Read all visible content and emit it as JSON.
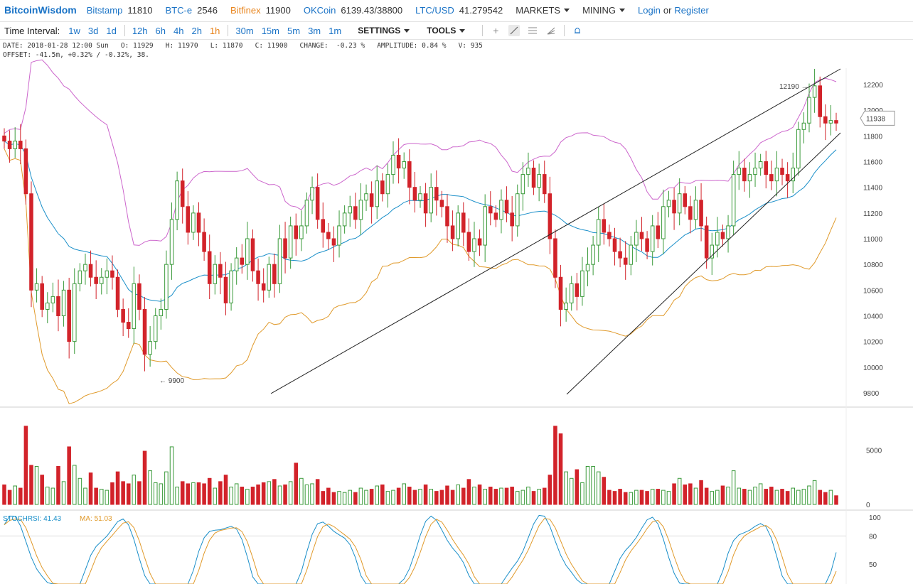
{
  "header": {
    "brand": "BitcoinWisdom",
    "markets": [
      {
        "name": "Bitstamp",
        "price": "11810",
        "color": "#1a73c6"
      },
      {
        "name": "BTC-e",
        "price": "2546",
        "color": "#1a73c6"
      },
      {
        "name": "Bitfinex",
        "price": "11900",
        "color": "#e8841c"
      },
      {
        "name": "OKCoin",
        "price": "6139.43/38800",
        "color": "#1a73c6"
      },
      {
        "name": "LTC/USD",
        "price": "41.279542",
        "color": "#1a73c6"
      }
    ],
    "menus": [
      "MARKETS",
      "MINING"
    ],
    "login": "Login",
    "or": "or",
    "register": "Register"
  },
  "toolbar": {
    "label": "Time Interval:",
    "intervals": [
      "1w",
      "3d",
      "1d",
      "12h",
      "6h",
      "4h",
      "2h",
      "1h",
      "30m",
      "15m",
      "5m",
      "3m",
      "1m"
    ],
    "active_interval": "1h",
    "settings": "SETTINGS",
    "tools": "TOOLS",
    "icons": [
      "crosshair-icon",
      "trendline-icon",
      "fibonacci-icon",
      "fan-icon",
      "bell-icon"
    ]
  },
  "info": {
    "line1": "DATE: 2018-01-28 12:00 Sun   O: 11929   H: 11970   L: 11870   C: 11900   CHANGE:  -0.23 %   AMPLITUDE: 0.84 %   V: 935",
    "line2": "OFFSET: -41.5m, +0.32% / -0.32%, 38."
  },
  "chart_data": {
    "type": "candlestick",
    "y_ticks": [
      9800,
      10000,
      10200,
      10400,
      10600,
      10800,
      11000,
      11200,
      11400,
      11600,
      11800,
      12000,
      12200
    ],
    "ylim": [
      9700,
      12300
    ],
    "current_price": "11938",
    "annotations": [
      {
        "text": "12190 →",
        "value": 12190
      },
      {
        "text": "← 9900",
        "value": 9900
      }
    ],
    "colors": {
      "up": "#3a9a3a",
      "down": "#d2232a",
      "upper_band": "#cc66cc",
      "middle_band": "#1a8fc9",
      "lower_band": "#e09a2b",
      "trendline": "#222222"
    },
    "closes": [
      11760,
      11700,
      11760,
      11700,
      11350,
      10600,
      10650,
      10450,
      10500,
      10550,
      10400,
      10600,
      10200,
      10650,
      10750,
      10800,
      10700,
      10650,
      10700,
      10750,
      10700,
      10450,
      10350,
      10300,
      10650,
      10450,
      10100,
      10200,
      10400,
      10450,
      10800,
      11150,
      11450,
      11250,
      11050,
      11200,
      11050,
      10900,
      10650,
      10800,
      10700,
      10500,
      10750,
      10850,
      10800,
      11000,
      10750,
      10650,
      10600,
      10800,
      10650,
      11000,
      10850,
      11100,
      11000,
      11100,
      11300,
      11400,
      11150,
      11050,
      11000,
      10950,
      11100,
      11200,
      11250,
      11150,
      11300,
      11350,
      11250,
      11450,
      11350,
      11500,
      11650,
      11550,
      11600,
      11400,
      11300,
      11350,
      11200,
      11400,
      11300,
      11250,
      11100,
      11000,
      11200,
      11050,
      10900,
      11000,
      10950,
      11250,
      11200,
      11150,
      11300,
      11200,
      11100,
      11350,
      11500,
      11550,
      11400,
      11500,
      11350,
      11000,
      10700,
      10450,
      10500,
      10650,
      10550,
      10750,
      10800,
      10950,
      11150,
      11050,
      11000,
      10900,
      10850,
      10800,
      10950,
      11050,
      11000,
      10900,
      11100,
      11000,
      11250,
      11300,
      11200,
      11350,
      11250,
      11150,
      11300,
      11100,
      10850,
      10950,
      11050,
      11000,
      11100,
      11500,
      11550,
      11450,
      11500,
      11550,
      11600,
      11500,
      11450,
      11550,
      11500,
      11450,
      11550,
      11850,
      11900,
      12100,
      12190,
      11950,
      11900,
      11920,
      11900
    ],
    "volumes": [
      1800,
      1300,
      1700,
      1500,
      7200,
      3600,
      3500,
      2700,
      1600,
      1500,
      3500,
      2100,
      5300,
      3600,
      2400,
      1500,
      2900,
      1500,
      1400,
      1300,
      2000,
      3000,
      2100,
      1900,
      2700,
      2100,
      4900,
      3100,
      2000,
      1900,
      3000,
      5300,
      1600,
      2100,
      1900,
      2000,
      2000,
      1900,
      2400,
      1500,
      2100,
      2700,
      1600,
      1900,
      1600,
      1400,
      1600,
      1800,
      2000,
      2100,
      2300,
      1700,
      1800,
      2100,
      3800,
      2400,
      1800,
      1900,
      2300,
      1200,
      1500,
      1100,
      1200,
      1100,
      1300,
      1100,
      1500,
      1300,
      1400,
      1700,
      1800,
      1200,
      1300,
      1500,
      1900,
      1600,
      1300,
      1400,
      1800,
      1400,
      1200,
      1300,
      1700,
      1300,
      1800,
      1500,
      2300,
      1600,
      1800,
      1400,
      1600,
      1400,
      1500,
      1500,
      1600,
      1200,
      1300,
      1600,
      1200,
      1400,
      1500,
      2700,
      7200,
      6500,
      3000,
      2400,
      3200,
      2000,
      3500,
      3500,
      3000,
      2500,
      1300,
      1200,
      1400,
      1100,
      1100,
      1300,
      1300,
      1200,
      1400,
      1400,
      1300,
      1200,
      1900,
      2400,
      1800,
      1900,
      1500,
      2200,
      1500,
      1200,
      1300,
      1700,
      1600,
      3100,
      1500,
      1400,
      1300,
      1600,
      1900,
      1400,
      1600,
      1300,
      1400,
      1200,
      1500,
      1300,
      1400,
      1700,
      2200,
      1300,
      1100,
      1300,
      800
    ],
    "volume_axis": [
      0,
      5000
    ],
    "stochrsi": {
      "label": "STOCHRSI:",
      "value": "41.43",
      "ma_label": "MA:",
      "ma_value": "51.03",
      "axis": [
        50,
        80,
        100
      ]
    }
  }
}
